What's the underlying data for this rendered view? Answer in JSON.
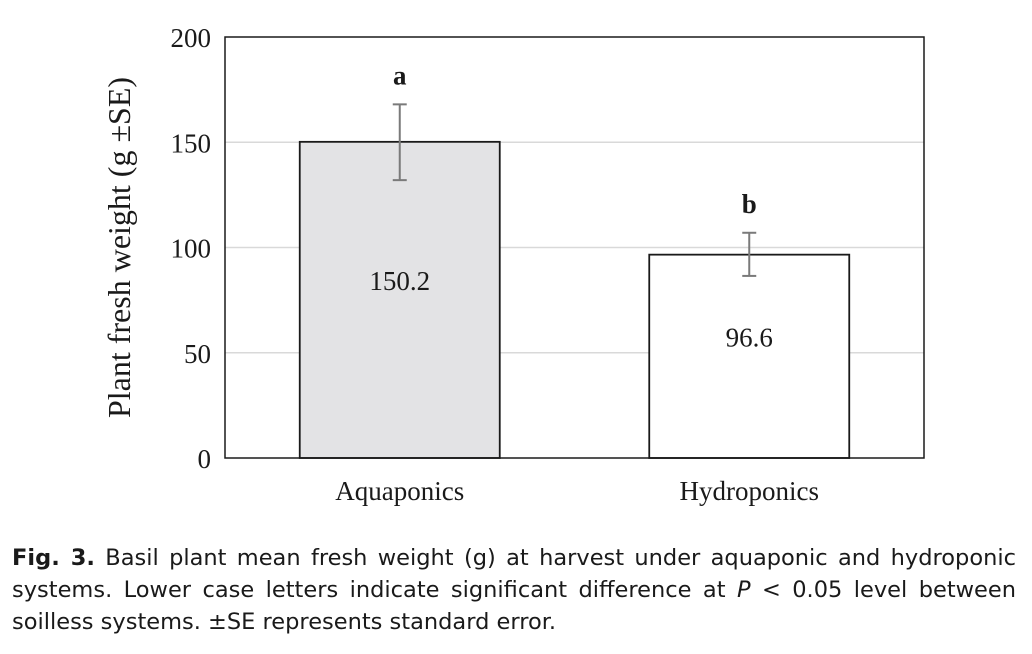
{
  "chart_data": {
    "type": "bar",
    "categories": [
      "Aquaponics",
      "Hydroponics"
    ],
    "values": [
      150.2,
      96.6
    ],
    "value_labels": [
      "150.2",
      "96.6"
    ],
    "error_bars": [
      {
        "upper": 168,
        "lower": 132
      },
      {
        "upper": 107,
        "lower": 86.5
      }
    ],
    "significance_letters": [
      "a",
      "b"
    ],
    "bar_colors": [
      "#e3e3e5",
      "#ffffff"
    ],
    "title": "",
    "xlabel": "",
    "ylabel": "Plant fresh weight (g ±SE)",
    "ylim": [
      0,
      200
    ],
    "yticks": [
      0,
      50,
      100,
      150,
      200
    ],
    "grid": true,
    "grid_color": "#d9d9d9",
    "legend": "none"
  },
  "caption": {
    "label": "Fig. 3.",
    "text_before_p": " Basil plant mean fresh weight (g) at harvest under aquaponic and hydroponic systems. Lower case letters indicate significant difference at ",
    "p_symbol": "P",
    "text_after_p": " < 0.05 level between soilless systems. ±SE represents standard error."
  }
}
